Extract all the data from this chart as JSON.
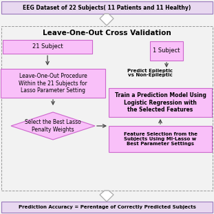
{
  "bg_color": "#f2f2f2",
  "pink_fill": "#f9c0f9",
  "pink_edge": "#cc66cc",
  "top_fill": "#e8d8f0",
  "top_edge": "#9977bb",
  "dashed_color": "#999999",
  "arrow_solid": "#444444",
  "arrow_open": "#aaaaaa",
  "title_top": "EEG Dataset of 22 Subjects( 11 Patients and 11 Healthy)",
  "label_cv": "Leave-One-Out Cross Validation",
  "label_21": "21 Subject",
  "label_1": "1 Subject",
  "label_predict": "Predict Epileptic\nvs Non-Epileptic",
  "label_loocv": "Leave-One-Out Procedure\nWithin the 21 Subjects for\nLasso Parameter Setting",
  "label_train": "Train a Prediction Model Using\nLogistic Regression with\nthe Selected Features",
  "label_select": "Select the Best Lasso\nPenalty Weights",
  "label_feature": "Feature Selection from the\nSubjects Using MI-Lasso w\nBest Parameter Settings",
  "label_bottom": "Prediction Accuracy = Perentage of Correctly Predicted Subjects"
}
